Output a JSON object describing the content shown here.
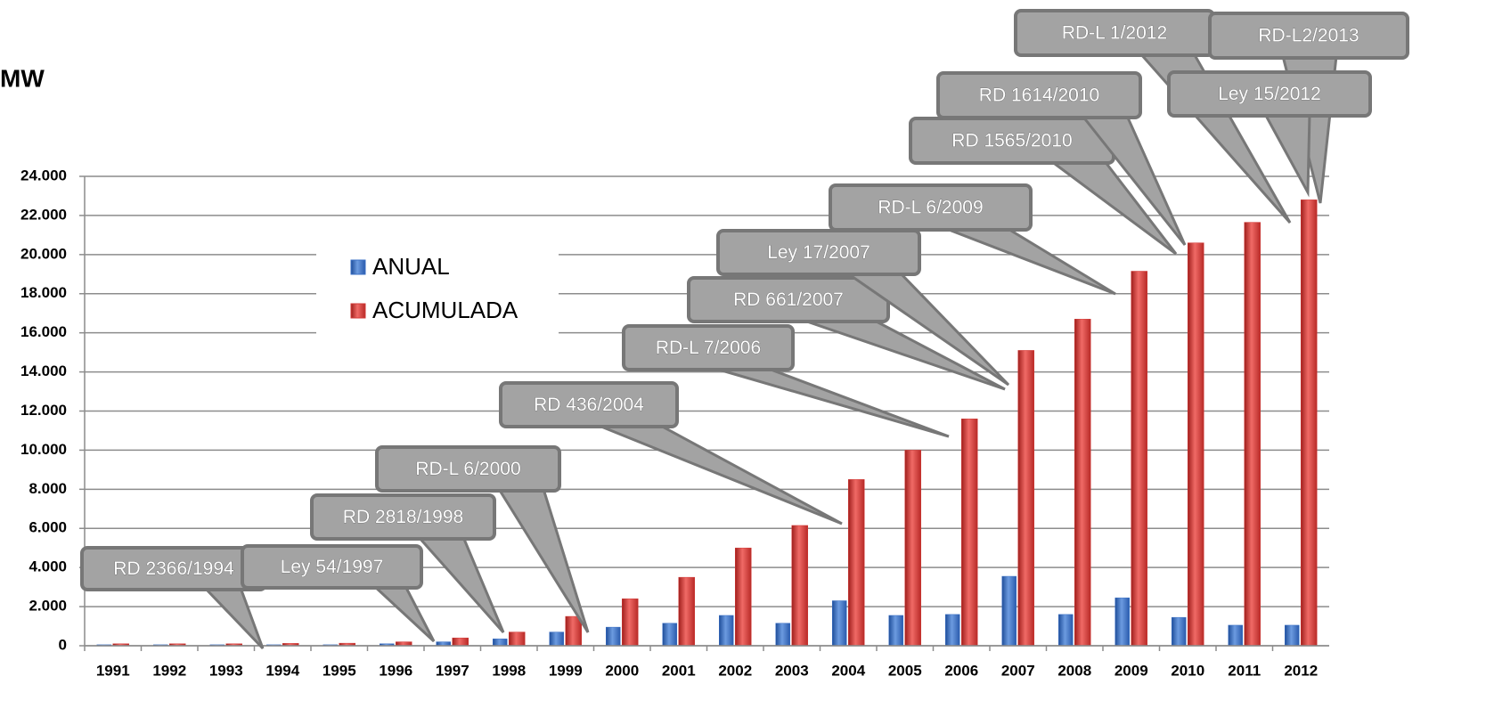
{
  "chart_data": {
    "type": "bar",
    "y_axis_label": "MW",
    "categories": [
      "1991",
      "1992",
      "1993",
      "1994",
      "1995",
      "1996",
      "1997",
      "1998",
      "1999",
      "2000",
      "2001",
      "2002",
      "2003",
      "2004",
      "2005",
      "2006",
      "2007",
      "2008",
      "2009",
      "2010",
      "2011",
      "2012"
    ],
    "series": [
      {
        "name": "ANUAL",
        "color": "#3a6fc4",
        "values": [
          50,
          50,
          50,
          50,
          50,
          100,
          200,
          350,
          700,
          950,
          1150,
          1550,
          1150,
          2300,
          1550,
          1600,
          3550,
          1600,
          2450,
          1450,
          1050,
          1050
        ]
      },
      {
        "name": "ACUMULADA",
        "color": "#d23a37",
        "values": [
          100,
          100,
          100,
          120,
          130,
          200,
          400,
          700,
          1500,
          2400,
          3500,
          5000,
          6150,
          8500,
          10000,
          11600,
          15100,
          16700,
          19150,
          20600,
          21650,
          22800
        ]
      }
    ],
    "ylim": [
      0,
      24000
    ],
    "yticks": [
      0,
      {
        "value": 2000,
        "label": "2.000"
      },
      {
        "value": 4000,
        "label": "4.000"
      },
      {
        "value": 6000,
        "label": "6.000"
      },
      {
        "value": 8000,
        "label": "8.000"
      },
      {
        "value": 10000,
        "label": "10.000"
      },
      {
        "value": 12000,
        "label": "12.000"
      },
      {
        "value": 14000,
        "label": "14.000"
      },
      {
        "value": 16000,
        "label": "16.000"
      },
      {
        "value": 18000,
        "label": "18.000"
      },
      {
        "value": 20000,
        "label": "20.000"
      },
      {
        "value": 22000,
        "label": "22.000"
      },
      {
        "value": 24000,
        "label": "24.000"
      }
    ],
    "grid": true,
    "annotations": [
      "RD 2366/1994",
      "Ley 54/1997",
      "RD 2818/1998",
      "RD-L 6/2000",
      "RD 436/2004",
      "RD-L 7/2006",
      "RD 661/2007",
      "Ley 17/2007",
      "RD-L 6/2009",
      "RD 1565/2010",
      "RD 1614/2010",
      "RD-L 1/2012",
      "RD-L2/2013",
      "Ley 15/2012"
    ]
  }
}
